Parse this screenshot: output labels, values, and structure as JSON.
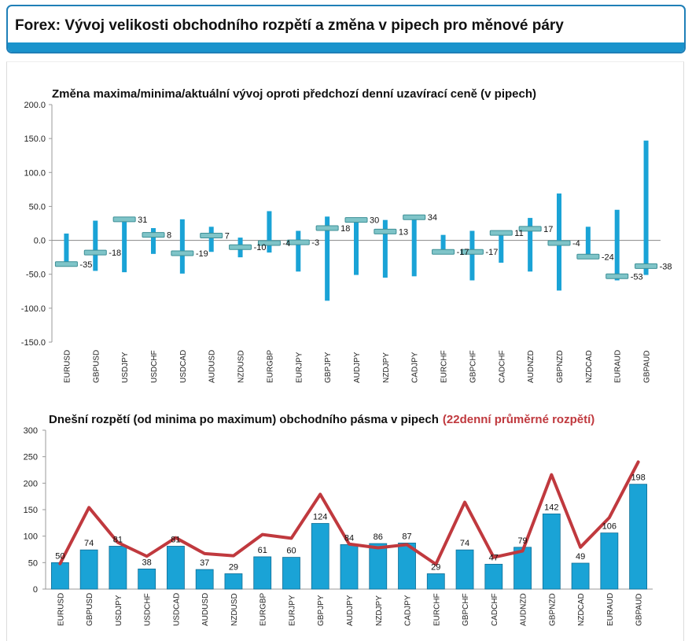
{
  "header": {
    "title": "Forex: Vývoj velikosti obchodního rozpětí a změna v pipech pro měnové páry"
  },
  "colors": {
    "bar": "#1aa3d6",
    "bar_edge": "#0f6e96",
    "current_marker": "#7fc4c8",
    "avg_line": "#c0393e",
    "subtitle_red": "#c0393e"
  },
  "chart_data": [
    {
      "type": "bar",
      "subtype": "high-low-current",
      "title": "Změna maxima/minima/aktuální vývoj oproti předchozí denní uzavírací ceně (v pipech)",
      "categories": [
        "EURUSD",
        "GBPUSD",
        "USDJPY",
        "USDCHF",
        "USDCAD",
        "AUDUSD",
        "NZDUSD",
        "EURGBP",
        "EURJPY",
        "GBPJPY",
        "AUDJPY",
        "NZDJPY",
        "CADJPY",
        "EURCHF",
        "GBPCHF",
        "CADCHF",
        "AUDNZD",
        "GBPNZD",
        "NZDCAD",
        "EURAUD",
        "GBPAUD"
      ],
      "high": [
        10,
        29,
        32,
        18,
        31,
        20,
        4,
        43,
        14,
        35,
        30,
        30,
        35,
        8,
        14,
        13,
        33,
        69,
        20,
        45,
        147
      ],
      "low": [
        -37,
        -45,
        -47,
        -20,
        -49,
        -17,
        -25,
        -18,
        -46,
        -89,
        -51,
        -55,
        -53,
        -18,
        -59,
        -33,
        -46,
        -74,
        -26,
        -59,
        -51
      ],
      "current": [
        -35,
        -18,
        31,
        8,
        -19,
        7,
        -10,
        -4,
        -3,
        18,
        30,
        13,
        34,
        -17,
        -17,
        11,
        17,
        -4,
        -24,
        -53,
        -38
      ],
      "current_labels": [
        "-35",
        "-18",
        "31",
        "8",
        "-19",
        "7",
        "-10",
        "-4",
        "-3",
        "18",
        "30",
        "13",
        "34",
        "-17",
        "-17",
        "11",
        "17",
        "-4",
        "-24",
        "-53",
        "-38"
      ],
      "ylim": [
        -150,
        200
      ],
      "yticks": [
        "200.0",
        "150.0",
        "100.0",
        "50.0",
        "0.0",
        "-50.0",
        "-100.0",
        "-150.0"
      ],
      "ytick_values": [
        200,
        150,
        100,
        50,
        0,
        -50,
        -100,
        -150
      ]
    },
    {
      "type": "bar",
      "title": "Dnešní rozpětí (od minima po maximum) obchodního pásma v pipech",
      "title_red": "(22denní průměrné rozpětí)",
      "categories": [
        "EURUSD",
        "GBPUSD",
        "USDJPY",
        "USDCHF",
        "USDCAD",
        "AUDUSD",
        "NZDUSD",
        "EURGBP",
        "EURJPY",
        "GBPJPY",
        "AUDJPY",
        "NZDJPY",
        "CADJPY",
        "EURCHF",
        "GBPCHF",
        "CADCHF",
        "AUDNZD",
        "GBPNZD",
        "NZDCAD",
        "EURAUD",
        "GBPAUD"
      ],
      "values": [
        50,
        74,
        81,
        38,
        81,
        37,
        29,
        61,
        60,
        124,
        84,
        86,
        87,
        29,
        74,
        47,
        79,
        142,
        49,
        106,
        198
      ],
      "value_labels": [
        "50",
        "74",
        "81",
        "38",
        "81",
        "37",
        "29",
        "61",
        "60",
        "124",
        "84",
        "86",
        "87",
        "29",
        "74",
        "47",
        "79",
        "142",
        "49",
        "106",
        "198"
      ],
      "avg_range": [
        48,
        154,
        88,
        62,
        97,
        67,
        63,
        103,
        96,
        179,
        85,
        78,
        84,
        47,
        164,
        60,
        72,
        216,
        79,
        135,
        240
      ],
      "ylim": [
        0,
        300
      ],
      "yticks": [
        "300",
        "250",
        "200",
        "150",
        "100",
        "50",
        "0"
      ],
      "ytick_values": [
        300,
        250,
        200,
        150,
        100,
        50,
        0
      ]
    }
  ]
}
